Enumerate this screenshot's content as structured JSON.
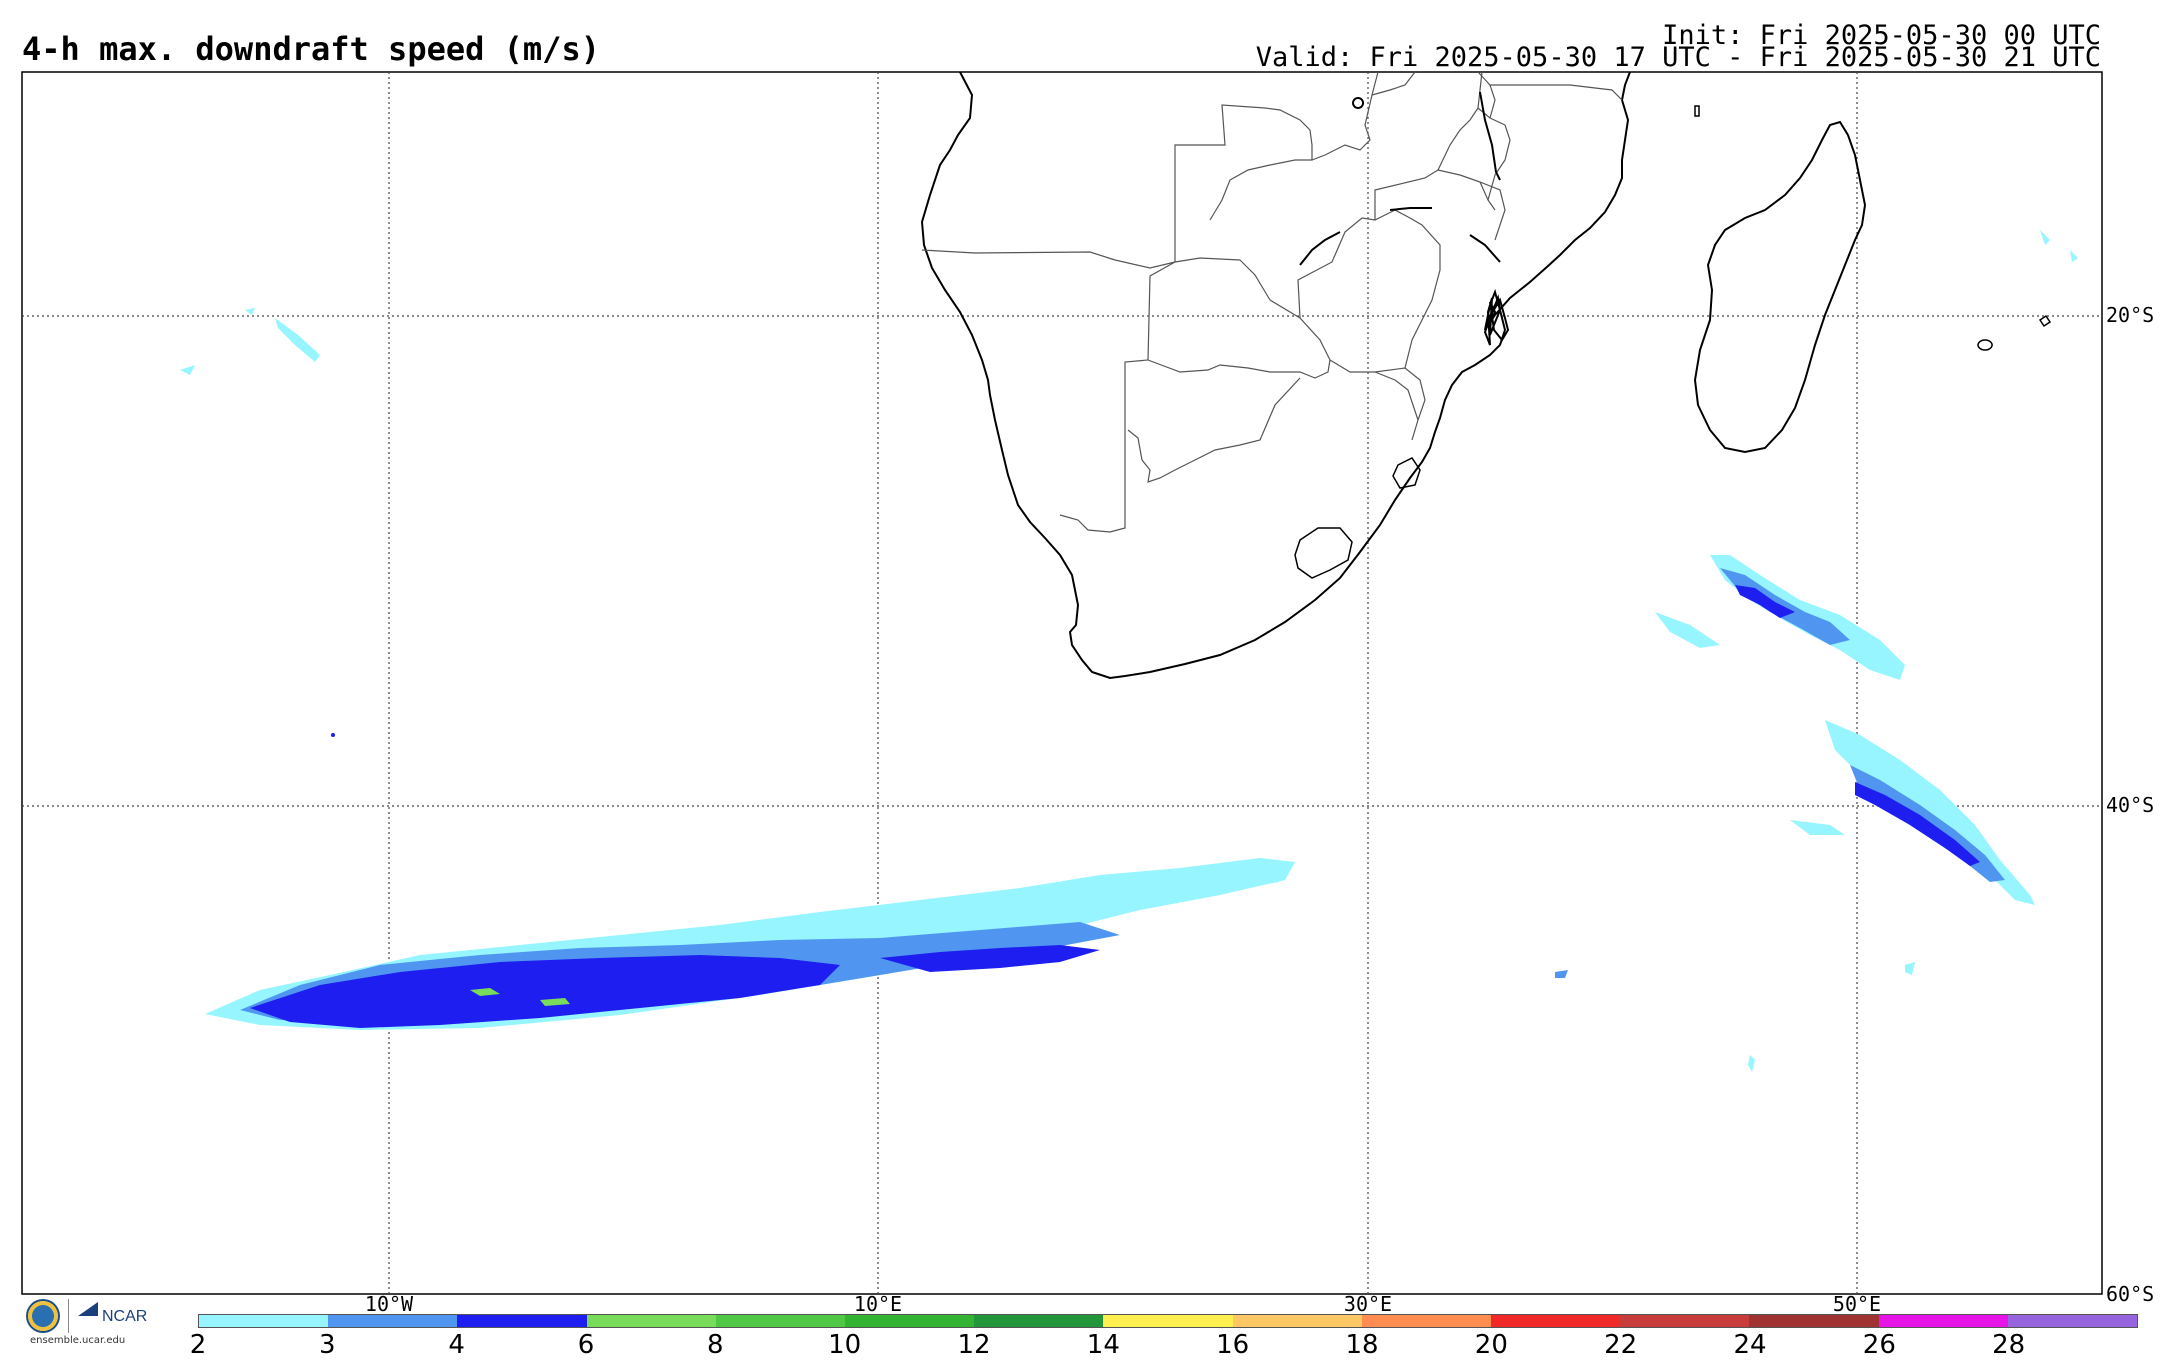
{
  "header": {
    "title": "4-h max. downdraft speed (m/s)",
    "init": "Init: Fri 2025-05-30 00 UTC",
    "valid": "Valid: Fri 2025-05-30 17 UTC - Fri 2025-05-30 21 UTC"
  },
  "axes": {
    "lat_labels": [
      "20°S",
      "40°S",
      "60°S"
    ],
    "lon_labels": [
      "10°W",
      "10°E",
      "30°E",
      "50°E"
    ]
  },
  "colorbar": {
    "ticks": [
      "2",
      "3",
      "4",
      "6",
      "8",
      "10",
      "12",
      "14",
      "16",
      "18",
      "20",
      "22",
      "24",
      "26",
      "28"
    ],
    "colors": [
      "#96f5ff",
      "#5096f0",
      "#1e1ef0",
      "#78dc5a",
      "#50c846",
      "#32b432",
      "#23963c",
      "#fff050",
      "#ffc864",
      "#ff8c50",
      "#f02828",
      "#c83c3c",
      "#a03232",
      "#e614e6",
      "#9664dc"
    ]
  },
  "map": {
    "features": [
      "africa-coastline",
      "madagascar",
      "country-borders",
      "lesotho",
      "downdraft-swath-south-atlantic",
      "downdraft-swath-southwest-indian-ocean"
    ]
  },
  "footer": {
    "logo_nsf": "NSF",
    "logo_ncar": "NCAR",
    "site": "ensemble.ucar.edu"
  }
}
